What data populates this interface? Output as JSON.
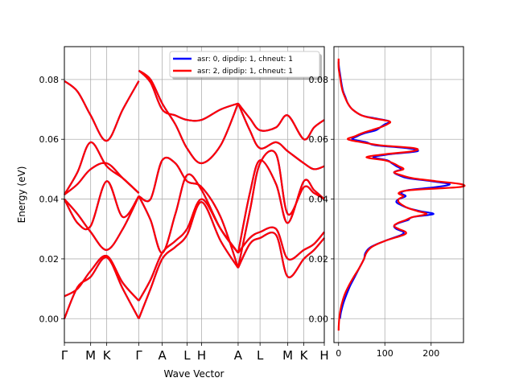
{
  "chart_data": [
    {
      "type": "line",
      "panel": "band-structure",
      "xlabel": "Wave Vector",
      "ylabel": "Energy (eV)",
      "ylim": [
        -0.008,
        0.091
      ],
      "yticks": [
        0.0,
        0.02,
        0.04,
        0.06,
        0.08
      ],
      "ytick_labels": [
        "0.00",
        "0.02",
        "0.04",
        "0.06",
        "0.08"
      ],
      "qpoint_labels": [
        "Γ",
        "M",
        "K",
        "Γ",
        "A",
        "L",
        "H",
        "A",
        "L",
        "M",
        "K",
        "H"
      ],
      "qpoint_positions": [
        0,
        0.18,
        0.29,
        0.51,
        0.67,
        0.84,
        0.94,
        1.19,
        1.34,
        1.53,
        1.64,
        1.78
      ],
      "grid": true,
      "legend": "top-right",
      "series": [
        {
          "name": "asr: 0, dipdip: 1, chneut: 1",
          "color": "#0000ff"
        },
        {
          "name": "asr: 2, dipdip: 1, chneut: 1",
          "color": "#ff0000"
        }
      ],
      "bands": [
        {
          "x": [
            0,
            0.09,
            0.18,
            0.29,
            0.4,
            0.51
          ],
          "y": [
            0.0075,
            0.01,
            0.016,
            0.021,
            0.012,
            0.006
          ]
        },
        {
          "x": [
            0,
            0.09,
            0.18,
            0.29,
            0.4,
            0.51
          ],
          "y": [
            0.0,
            0.0105,
            0.014,
            0.0205,
            0.01,
            0.0
          ]
        },
        {
          "x": [
            0,
            0.09,
            0.18,
            0.29,
            0.4,
            0.51
          ],
          "y": [
            0.04,
            0.035,
            0.029,
            0.023,
            0.03,
            0.041
          ]
        },
        {
          "x": [
            0,
            0.09,
            0.18,
            0.29,
            0.4,
            0.51
          ],
          "y": [
            0.04,
            0.032,
            0.031,
            0.046,
            0.034,
            0.041
          ]
        },
        {
          "x": [
            0,
            0.09,
            0.18,
            0.29,
            0.4,
            0.51
          ],
          "y": [
            0.0415,
            0.049,
            0.059,
            0.051,
            0.047,
            0.042
          ]
        },
        {
          "x": [
            0,
            0.09,
            0.18,
            0.29,
            0.4,
            0.51
          ],
          "y": [
            0.0415,
            0.045,
            0.05,
            0.052,
            0.047,
            0.042
          ]
        },
        {
          "x": [
            0,
            0.09,
            0.18,
            0.29,
            0.4,
            0.51
          ],
          "y": [
            0.0795,
            0.076,
            0.068,
            0.0595,
            0.07,
            0.0795
          ]
        },
        {
          "x": [
            0.51,
            0.59,
            0.67,
            0.76,
            0.84,
            0.94,
            1.07,
            1.19
          ],
          "y": [
            0.006,
            0.013,
            0.022,
            0.026,
            0.03,
            0.04,
            0.03,
            0.022
          ]
        },
        {
          "x": [
            0.51,
            0.59,
            0.67,
            0.76,
            0.84,
            0.94,
            1.07,
            1.19
          ],
          "y": [
            0.0,
            0.01,
            0.02,
            0.024,
            0.028,
            0.039,
            0.026,
            0.017
          ]
        },
        {
          "x": [
            0.51,
            0.59,
            0.67,
            0.76,
            0.84,
            0.94,
            1.07,
            1.19
          ],
          "y": [
            0.041,
            0.033,
            0.022,
            0.035,
            0.048,
            0.043,
            0.03,
            0.022
          ]
        },
        {
          "x": [
            0.51,
            0.59,
            0.67,
            0.76,
            0.84,
            0.94,
            1.07,
            1.19
          ],
          "y": [
            0.041,
            0.04,
            0.053,
            0.052,
            0.046,
            0.044,
            0.034,
            0.017
          ]
        },
        {
          "x": [
            0.51,
            0.59,
            0.67,
            0.76,
            0.84,
            0.94,
            1.07,
            1.19
          ],
          "y": [
            0.083,
            0.08,
            0.072,
            0.065,
            0.057,
            0.052,
            0.058,
            0.072
          ]
        },
        {
          "x": [
            0.51,
            0.59,
            0.67,
            0.76,
            0.84,
            0.94,
            1.07,
            1.19
          ],
          "y": [
            0.083,
            0.079,
            0.07,
            0.068,
            0.0665,
            0.0665,
            0.07,
            0.072
          ]
        },
        {
          "x": [
            1.19,
            1.27,
            1.34,
            1.45,
            1.53,
            1.64,
            1.71,
            1.78
          ],
          "y": [
            0.022,
            0.027,
            0.029,
            0.03,
            0.02,
            0.023,
            0.025,
            0.029
          ]
        },
        {
          "x": [
            1.19,
            1.27,
            1.34,
            1.45,
            1.53,
            1.64,
            1.71,
            1.78
          ],
          "y": [
            0.017,
            0.025,
            0.027,
            0.028,
            0.014,
            0.02,
            0.023,
            0.027
          ]
        },
        {
          "x": [
            1.19,
            1.27,
            1.34,
            1.45,
            1.53,
            1.64,
            1.71,
            1.78
          ],
          "y": [
            0.022,
            0.042,
            0.053,
            0.045,
            0.032,
            0.046,
            0.043,
            0.04
          ]
        },
        {
          "x": [
            1.19,
            1.27,
            1.34,
            1.45,
            1.53,
            1.64,
            1.71,
            1.78
          ],
          "y": [
            0.017,
            0.036,
            0.052,
            0.055,
            0.035,
            0.044,
            0.042,
            0.04
          ]
        },
        {
          "x": [
            1.19,
            1.27,
            1.34,
            1.45,
            1.53,
            1.64,
            1.71,
            1.78
          ],
          "y": [
            0.072,
            0.063,
            0.057,
            0.059,
            0.056,
            0.052,
            0.05,
            0.051
          ]
        },
        {
          "x": [
            1.19,
            1.27,
            1.34,
            1.45,
            1.53,
            1.64,
            1.71,
            1.78
          ],
          "y": [
            0.072,
            0.067,
            0.063,
            0.064,
            0.068,
            0.06,
            0.064,
            0.0665
          ]
        }
      ]
    },
    {
      "type": "line",
      "panel": "phonon-dos",
      "xlim": [
        -10,
        270
      ],
      "ylim": [
        -0.008,
        0.091
      ],
      "xticks": [
        0,
        100,
        200
      ],
      "xtick_labels": [
        "0",
        "100",
        "200"
      ],
      "yticks": [
        0.0,
        0.02,
        0.04,
        0.06,
        0.08
      ],
      "ytick_labels": [
        "0.00",
        "0.02",
        "0.04",
        "0.06",
        "0.08"
      ],
      "grid": true,
      "series": [
        {
          "name": "asr: 0, dipdip: 1, chneut: 1",
          "color": "#0000ff",
          "energy": [
            0.0,
            0.002,
            0.005,
            0.008,
            0.011,
            0.014,
            0.017,
            0.02,
            0.022,
            0.024,
            0.026,
            0.028,
            0.029,
            0.03,
            0.031,
            0.032,
            0.033,
            0.034,
            0.035,
            0.036,
            0.037,
            0.038,
            0.039,
            0.04,
            0.041,
            0.042,
            0.043,
            0.044,
            0.045,
            0.046,
            0.047,
            0.048,
            0.049,
            0.05,
            0.051,
            0.052,
            0.053,
            0.054,
            0.055,
            0.056,
            0.057,
            0.058,
            0.059,
            0.06,
            0.061,
            0.062,
            0.063,
            0.064,
            0.065,
            0.066,
            0.067,
            0.068,
            0.07,
            0.072,
            0.074,
            0.076,
            0.078,
            0.08,
            0.082,
            0.084,
            0.086
          ],
          "dos": [
            3,
            5,
            10,
            17,
            25,
            35,
            45,
            55,
            58,
            70,
            100,
            135,
            140,
            125,
            120,
            130,
            150,
            160,
            205,
            175,
            150,
            135,
            125,
            130,
            145,
            135,
            150,
            210,
            240,
            200,
            150,
            130,
            120,
            135,
            125,
            115,
            105,
            75,
            110,
            170,
            150,
            80,
            60,
            30,
            40,
            55,
            80,
            90,
            100,
            110,
            80,
            50,
            30,
            20,
            15,
            10,
            7,
            5,
            3,
            1,
            0
          ]
        },
        {
          "name": "asr: 2, dipdip: 1, chneut: 1",
          "color": "#ff0000",
          "energy": [
            -0.004,
            -0.001,
            0.002,
            0.005,
            0.008,
            0.011,
            0.014,
            0.017,
            0.02,
            0.022,
            0.024,
            0.026,
            0.028,
            0.029,
            0.03,
            0.031,
            0.032,
            0.033,
            0.034,
            0.035,
            0.036,
            0.037,
            0.038,
            0.039,
            0.04,
            0.041,
            0.042,
            0.043,
            0.044,
            0.045,
            0.046,
            0.047,
            0.048,
            0.049,
            0.05,
            0.051,
            0.052,
            0.053,
            0.054,
            0.055,
            0.056,
            0.057,
            0.058,
            0.059,
            0.06,
            0.061,
            0.062,
            0.063,
            0.064,
            0.065,
            0.066,
            0.067,
            0.068,
            0.07,
            0.072,
            0.074,
            0.076,
            0.078,
            0.08,
            0.082,
            0.084,
            0.087
          ],
          "dos": [
            0,
            1,
            3,
            7,
            13,
            22,
            33,
            45,
            55,
            60,
            72,
            100,
            140,
            145,
            130,
            120,
            128,
            145,
            160,
            190,
            170,
            150,
            138,
            130,
            130,
            140,
            130,
            155,
            260,
            265,
            210,
            160,
            135,
            120,
            140,
            130,
            118,
            100,
            60,
            100,
            160,
            165,
            90,
            50,
            20,
            35,
            50,
            70,
            90,
            105,
            110,
            75,
            50,
            30,
            20,
            14,
            9,
            6,
            4,
            2,
            0,
            0
          ]
        }
      ]
    }
  ]
}
